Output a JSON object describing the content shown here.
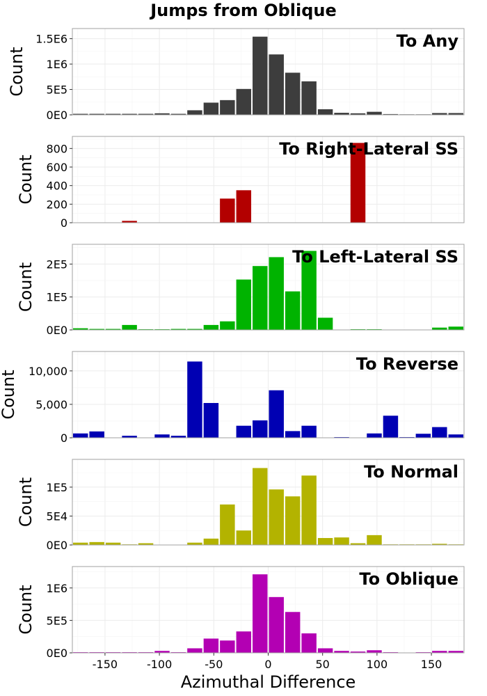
{
  "title": "Jumps from Oblique",
  "xlabel": "Azimuthal Difference",
  "x_tick_labels": [
    "-150",
    "-100",
    "-50",
    "0",
    "50",
    "100",
    "150"
  ],
  "chart_data": [
    {
      "type": "bar",
      "title": "To Any",
      "ylabel": "Count",
      "color": "#3d3d3d",
      "xlim": [
        -180,
        180
      ],
      "bin_width": 15,
      "x": [
        -172.5,
        -157.5,
        -142.5,
        -127.5,
        -112.5,
        -97.5,
        -82.5,
        -67.5,
        -52.5,
        -37.5,
        -22.5,
        -7.5,
        7.5,
        22.5,
        37.5,
        52.5,
        67.5,
        82.5,
        97.5,
        112.5,
        127.5,
        142.5,
        157.5,
        172.5
      ],
      "values": [
        20000,
        20000,
        20000,
        20000,
        20000,
        30000,
        20000,
        90000,
        240000,
        290000,
        510000,
        1540000,
        1190000,
        830000,
        660000,
        110000,
        40000,
        30000,
        60000,
        15000,
        10000,
        10000,
        35000,
        35000
      ],
      "ylim": [
        0,
        1700000
      ],
      "y_ticks": [
        0,
        500000,
        1000000,
        1500000
      ],
      "y_tick_labels": [
        "0E0",
        "5E5",
        "1E6",
        "1.5E6"
      ]
    },
    {
      "type": "bar",
      "title": "To Right-Lateral SS",
      "ylabel": "Count",
      "color": "#b30000",
      "xlim": [
        -180,
        180
      ],
      "bin_width": 15,
      "x": [
        -127.5,
        -37.5,
        -22.5,
        82.5
      ],
      "values": [
        20,
        260,
        350,
        860
      ],
      "ylim": [
        0,
        930
      ],
      "y_ticks": [
        0,
        200,
        400,
        600,
        800
      ],
      "y_tick_labels": [
        "0",
        "200",
        "400",
        "600",
        "800"
      ]
    },
    {
      "type": "bar",
      "title": "To Left-Lateral SS",
      "ylabel": "Count",
      "color": "#00b300",
      "xlim": [
        -180,
        180
      ],
      "bin_width": 15,
      "x": [
        -172.5,
        -157.5,
        -142.5,
        -127.5,
        -112.5,
        -97.5,
        -82.5,
        -67.5,
        -52.5,
        -37.5,
        -22.5,
        -7.5,
        7.5,
        22.5,
        37.5,
        52.5,
        67.5,
        82.5,
        97.5,
        112.5,
        127.5,
        142.5,
        157.5,
        172.5
      ],
      "values": [
        5000,
        3000,
        3000,
        15000,
        2000,
        2000,
        3000,
        3000,
        15000,
        26000,
        153000,
        194000,
        221000,
        117000,
        240000,
        37000,
        1000,
        2000,
        2000,
        1000,
        1000,
        1000,
        7000,
        10000
      ],
      "ylim": [
        0,
        260000
      ],
      "y_ticks": [
        0,
        100000,
        200000
      ],
      "y_tick_labels": [
        "0E0",
        "1E5",
        "2E5"
      ]
    },
    {
      "type": "bar",
      "title": "To Reverse",
      "ylabel": "Count",
      "color": "#0000b3",
      "xlim": [
        -180,
        180
      ],
      "bin_width": 15,
      "x": [
        -172.5,
        -157.5,
        -142.5,
        -127.5,
        -112.5,
        -97.5,
        -82.5,
        -67.5,
        -52.5,
        -37.5,
        -22.5,
        -7.5,
        7.5,
        22.5,
        37.5,
        52.5,
        67.5,
        82.5,
        97.5,
        112.5,
        127.5,
        142.5,
        157.5,
        172.5
      ],
      "values": [
        650,
        950,
        0,
        300,
        0,
        500,
        300,
        11400,
        5200,
        0,
        1800,
        2600,
        7100,
        1000,
        1800,
        0,
        100,
        50,
        650,
        3300,
        100,
        600,
        1600,
        500
      ],
      "ylim": [
        0,
        12900
      ],
      "y_ticks": [
        0,
        5000,
        10000
      ],
      "y_tick_labels": [
        "0",
        "5,000",
        "10,000"
      ]
    },
    {
      "type": "bar",
      "title": "To Normal",
      "ylabel": "Count",
      "color": "#b3b300",
      "xlim": [
        -180,
        180
      ],
      "bin_width": 15,
      "x": [
        -172.5,
        -157.5,
        -142.5,
        -127.5,
        -112.5,
        -97.5,
        -82.5,
        -67.5,
        -52.5,
        -37.5,
        -22.5,
        -7.5,
        7.5,
        22.5,
        37.5,
        52.5,
        67.5,
        82.5,
        97.5,
        112.5,
        127.5,
        142.5,
        157.5,
        172.5
      ],
      "values": [
        4000,
        5000,
        4000,
        1000,
        3000,
        500,
        500,
        4000,
        11000,
        70000,
        25000,
        133000,
        96000,
        84000,
        120000,
        12000,
        13000,
        3000,
        17000,
        1000,
        1000,
        1000,
        2000,
        1000
      ],
      "ylim": [
        0,
        148000
      ],
      "y_ticks": [
        0,
        50000,
        100000
      ],
      "y_tick_labels": [
        "0E0",
        "5E4",
        "1E5"
      ]
    },
    {
      "type": "bar",
      "title": "To Oblique",
      "ylabel": "Count",
      "color": "#b300b3",
      "xlim": [
        -180,
        180
      ],
      "bin_width": 15,
      "x": [
        -172.5,
        -157.5,
        -142.5,
        -127.5,
        -112.5,
        -97.5,
        -82.5,
        -67.5,
        -52.5,
        -37.5,
        -22.5,
        -7.5,
        7.5,
        22.5,
        37.5,
        52.5,
        67.5,
        82.5,
        97.5,
        112.5,
        127.5,
        142.5,
        157.5,
        172.5
      ],
      "values": [
        10000,
        10000,
        10000,
        10000,
        10000,
        30000,
        10000,
        70000,
        220000,
        190000,
        330000,
        1210000,
        860000,
        630000,
        300000,
        70000,
        30000,
        20000,
        40000,
        10000,
        5000,
        10000,
        30000,
        30000
      ],
      "ylim": [
        0,
        1330000
      ],
      "y_ticks": [
        0,
        500000,
        1000000
      ],
      "y_tick_labels": [
        "0E0",
        "5E5",
        "1E6"
      ]
    }
  ]
}
